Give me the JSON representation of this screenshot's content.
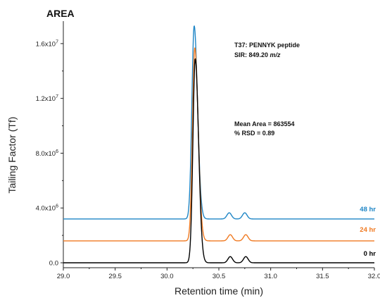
{
  "chart_data": {
    "type": "line",
    "title": "AREA",
    "xlabel": "Retention time (min)",
    "ylabel": "Tailing Factor (Tf)",
    "xlim": [
      29.0,
      32.0
    ],
    "ylim": [
      0,
      18000000
    ],
    "x_ticks": [
      29.0,
      29.5,
      30.0,
      30.5,
      31.0,
      31.5,
      32.0
    ],
    "x_tick_labels": [
      "29.0",
      "29.5",
      "30.0",
      "30.5",
      "31.0",
      "31.5",
      "32.0"
    ],
    "y_ticks": [
      0,
      4000000,
      8000000,
      12000000,
      16000000
    ],
    "y_tick_labels": [
      {
        "base": "0.0",
        "exp": ""
      },
      {
        "base": "4.0x10",
        "exp": "6"
      },
      {
        "base": "8.0x10",
        "exp": "6"
      },
      {
        "base": "1.2x10",
        "exp": "7"
      },
      {
        "base": "1.6x10",
        "exp": "7"
      }
    ],
    "grid": false,
    "annotations": [
      {
        "line1": "T37: PENNYK peptide",
        "line2_prefix": "SIR: 849.20 ",
        "line2_italic": "m/z"
      },
      {
        "line1": "Mean Area = 863554",
        "line2": "% RSD = 0.89"
      }
    ],
    "series": [
      {
        "name": "48 hr",
        "color": "#1f86c6",
        "baseline": 3200000,
        "peak_x": 30.262,
        "peak_height": 14100000,
        "minor_peaks": [
          {
            "x": 30.6,
            "height": 450000
          },
          {
            "x": 30.75,
            "height": 450000
          }
        ]
      },
      {
        "name": "24 hr",
        "color": "#f07a22",
        "baseline": 1600000,
        "peak_x": 30.268,
        "peak_height": 14100000,
        "minor_peaks": [
          {
            "x": 30.61,
            "height": 450000
          },
          {
            "x": 30.76,
            "height": 450000
          }
        ]
      },
      {
        "name": "0 hr",
        "color": "#000000",
        "baseline": 0,
        "peak_x": 30.272,
        "peak_height": 14900000,
        "minor_peaks": [
          {
            "x": 30.61,
            "height": 450000
          },
          {
            "x": 30.76,
            "height": 450000
          }
        ]
      }
    ]
  }
}
